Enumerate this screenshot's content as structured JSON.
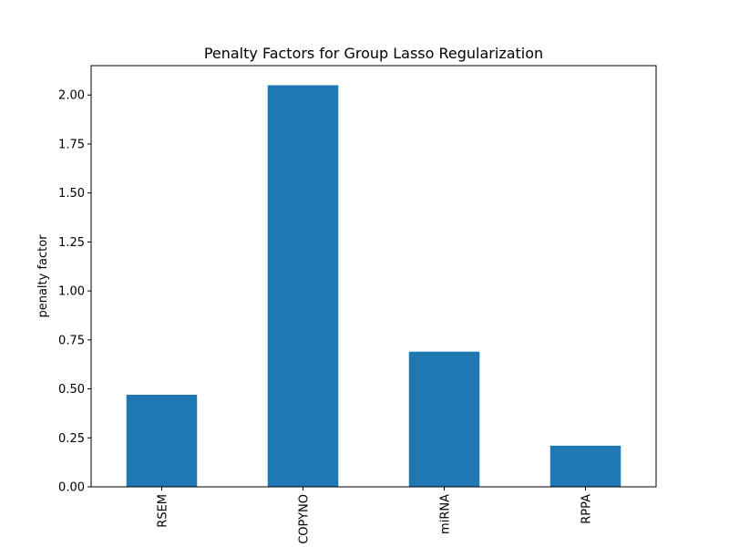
{
  "chart_data": {
    "type": "bar",
    "title": "Penalty Factors for Group Lasso Regularization",
    "xlabel": "",
    "ylabel": "penalty factor",
    "categories": [
      "RSEM",
      "COPYNO",
      "miRNA",
      "RPPA"
    ],
    "values": [
      0.47,
      2.05,
      0.69,
      0.21
    ],
    "ylim": [
      0,
      2.15
    ],
    "yticks": [
      0.0,
      0.25,
      0.5,
      0.75,
      1.0,
      1.25,
      1.5,
      1.75,
      2.0
    ],
    "ytick_labels": [
      "0.00",
      "0.25",
      "0.50",
      "0.75",
      "1.00",
      "1.25",
      "1.50",
      "1.75",
      "2.00"
    ],
    "bar_color": "#1f77b4",
    "grid": false,
    "legend": "none",
    "xtick_rotation": "vertical"
  }
}
